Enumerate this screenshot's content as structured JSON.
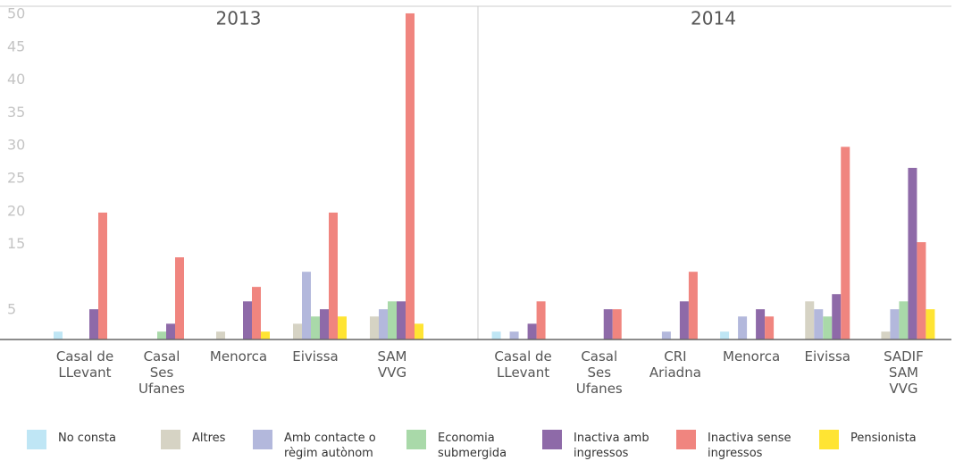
{
  "chart_data": {
    "type": "bar",
    "ylim": [
      0,
      50
    ],
    "yticks": [
      5,
      15,
      20,
      25,
      30,
      35,
      40,
      45,
      50
    ],
    "series": [
      {
        "name": "No consta",
        "color": "#bfe6f5"
      },
      {
        "name": "Altres",
        "color": "#d6d3c4"
      },
      {
        "name": "Amb contacte o\nrègim autònom",
        "color": "#b3b8dc"
      },
      {
        "name": "Economia\nsubmergida",
        "color": "#a9d9a9"
      },
      {
        "name": "Inactiva amb\ningressos",
        "color": "#8e6aa8"
      },
      {
        "name": "Inactiva sense\ningressos",
        "color": "#f0857f"
      },
      {
        "name": "Pensionista",
        "color": "#ffe433"
      }
    ],
    "panels": [
      {
        "title": "2013",
        "categories": [
          "Casal de\nLLevant",
          "Casal\nSes\nUfanes",
          "Menorca",
          "Eivissa",
          "SAM\nVVG"
        ],
        "values": [
          [
            1.2,
            0,
            0,
            0,
            0
          ],
          [
            0,
            0,
            1.2,
            2.4,
            3.5
          ],
          [
            0,
            0,
            0,
            10.3,
            4.6
          ],
          [
            0,
            1.2,
            0,
            3.5,
            5.8
          ],
          [
            4.6,
            2.4,
            5.8,
            4.6,
            5.8
          ],
          [
            19.3,
            12.5,
            8,
            19.3,
            49.6
          ],
          [
            0,
            0,
            1.2,
            3.5,
            2.4
          ]
        ]
      },
      {
        "title": "2014",
        "categories": [
          "Casal de\nLLevant",
          "Casal\nSes\nUfanes",
          "CRI\nAriadna",
          "Menorca",
          "Eivissa",
          "SADIF\nSAM\nVVG"
        ],
        "values": [
          [
            1.2,
            0,
            0,
            1.2,
            0,
            0
          ],
          [
            0,
            0,
            0,
            0,
            5.8,
            1.2
          ],
          [
            1.2,
            0,
            1.2,
            3.5,
            4.6,
            4.6
          ],
          [
            0,
            0,
            0,
            0,
            3.5,
            5.8
          ],
          [
            2.4,
            4.6,
            5.8,
            4.6,
            6.9,
            26.1
          ],
          [
            5.8,
            4.6,
            10.3,
            3.5,
            29.3,
            14.8
          ],
          [
            0,
            0,
            0,
            0,
            0,
            4.6
          ]
        ]
      }
    ]
  }
}
